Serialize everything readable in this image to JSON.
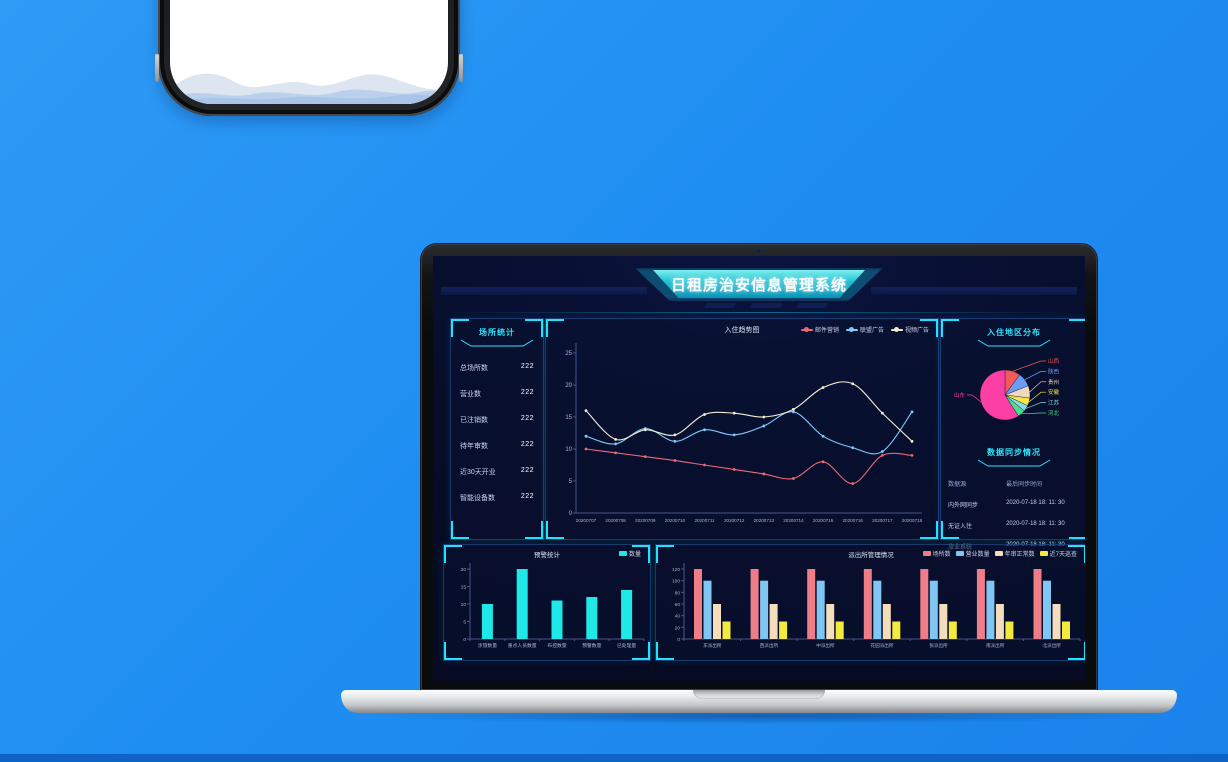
{
  "colors": {
    "accent_cyan": "#1de5ff",
    "background_blue": "#1f8ef2",
    "banner_teal": "#1cbcd2",
    "dashboard_bg": "#070c28",
    "axis": "#46578c",
    "axis_label": "#a7b6dc"
  },
  "header": {
    "title": "日租房治安信息管理系统"
  },
  "left_panel": {
    "title": "场所统计",
    "stats": [
      {
        "label": "总场所数",
        "value": "222"
      },
      {
        "label": "营业数",
        "value": "222"
      },
      {
        "label": "已注销数",
        "value": "222"
      },
      {
        "label": "待年审数",
        "value": "222"
      },
      {
        "label": "近30天开业",
        "value": "222"
      },
      {
        "label": "智能设备数",
        "value": "222"
      }
    ]
  },
  "right_panel": {
    "pie_title": "入住地区分布",
    "sync_title": "数据同步情况",
    "sync_table": {
      "headers": [
        "数据源",
        "最后同步时间"
      ],
      "rows": [
        {
          "source": "内外网同步",
          "time": "2020-07-18 18: 11: 30"
        },
        {
          "source": "无证入住",
          "time": "2020-07-18 18: 11: 30"
        },
        {
          "source": "旅业系统",
          "time": "2020-07-18 18: 11: 30"
        }
      ]
    }
  },
  "chart_data": [
    {
      "id": "trend",
      "type": "line",
      "title": "入住趋势图",
      "x": [
        "20200707",
        "20200708",
        "20200709",
        "20200710",
        "20200711",
        "20200712",
        "20200713",
        "20200714",
        "20200715",
        "20200716",
        "20200717",
        "20200718"
      ],
      "series": [
        {
          "name": "邮件营销",
          "color": "#e96b74",
          "values": [
            10,
            9.4,
            8.8,
            8.2,
            7.5,
            6.8,
            6.1,
            5.4,
            8.0,
            4.6,
            9.0,
            9.0
          ]
        },
        {
          "name": "联盟广告",
          "color": "#7ecbff",
          "values": [
            12,
            10.8,
            13.2,
            11.2,
            13.0,
            12.2,
            13.6,
            15.8,
            12.0,
            10.2,
            9.6,
            15.8
          ]
        },
        {
          "name": "视频广告",
          "color": "#f3ecd2",
          "values": [
            16,
            11.5,
            13.0,
            12.2,
            15.4,
            15.6,
            15.0,
            16.2,
            19.6,
            20.2,
            15.6,
            11.2
          ]
        }
      ],
      "ylim": [
        0,
        25
      ],
      "legend_position": "top-right",
      "grid": false
    },
    {
      "id": "region_pie",
      "type": "pie",
      "title": "入住地区分布",
      "slices": [
        {
          "name": "山西",
          "value": 10,
          "color": "#f05a5a"
        },
        {
          "name": "陕西",
          "value": 9,
          "color": "#6b9df8"
        },
        {
          "name": "贵州",
          "value": 8,
          "color": "#f0d8bc"
        },
        {
          "name": "安徽",
          "value": 5,
          "color": "#f6e943"
        },
        {
          "name": "江苏",
          "value": 4,
          "color": "#8ad9e8"
        },
        {
          "name": "河北",
          "value": 5,
          "color": "#4edd8a"
        },
        {
          "name": "山东",
          "value": 59,
          "color": "#fb3fa5"
        }
      ]
    },
    {
      "id": "warning_bar",
      "type": "bar",
      "title": "预警统计",
      "categories": [
        "涉旅数量",
        "重点人员数量",
        "布控数量",
        "预警数量",
        "已处理量"
      ],
      "series": [
        {
          "name": "数量",
          "color": "#1fe9e8",
          "values": [
            10,
            20,
            11,
            12,
            14
          ]
        }
      ],
      "ylim": [
        0,
        20
      ]
    },
    {
      "id": "station_bar",
      "type": "bar",
      "title": "派出所管理情况",
      "categories": [
        "东派出所",
        "西派出所",
        "中派出所",
        "花园派出所",
        "张派出所",
        "南派出所",
        "北派出所"
      ],
      "series": [
        {
          "name": "场所数",
          "color": "#ef7d88",
          "values": [
            120,
            120,
            120,
            120,
            120,
            120,
            120
          ]
        },
        {
          "name": "营业数量",
          "color": "#7fc6f2",
          "values": [
            100,
            100,
            100,
            100,
            100,
            100,
            100
          ]
        },
        {
          "name": "年审正常数",
          "color": "#f3ddba",
          "values": [
            60,
            60,
            60,
            60,
            60,
            60,
            60
          ]
        },
        {
          "name": "近7天巡查",
          "color": "#f4ea3d",
          "values": [
            30,
            30,
            30,
            30,
            30,
            30,
            30
          ]
        }
      ],
      "ylim": [
        0,
        120
      ]
    }
  ]
}
